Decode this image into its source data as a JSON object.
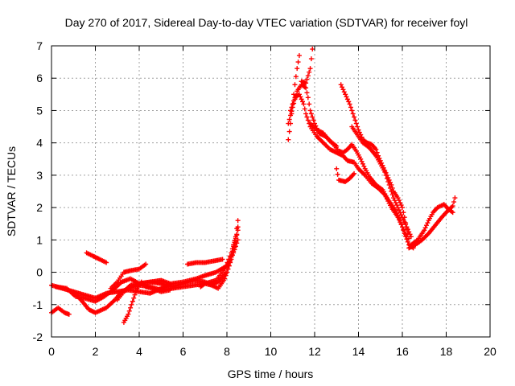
{
  "chart_data": {
    "type": "scatter",
    "title": "Day 270 of 2017, Sidereal Day-to-day VTEC variation (SDTVAR) for receiver foyl",
    "xlabel": "GPS time / hours",
    "ylabel": "SDTVAR / TECUs",
    "xlim": [
      0,
      20
    ],
    "ylim": [
      -2,
      7
    ],
    "xticks": [
      "0",
      "2",
      "4",
      "6",
      "8",
      "10",
      "12",
      "14",
      "16",
      "18",
      "20"
    ],
    "yticks": [
      "-2",
      "-1",
      "0",
      "1",
      "2",
      "3",
      "4",
      "5",
      "6",
      "7"
    ],
    "grid": true,
    "marker": "+",
    "series_color": "#ff0000",
    "tracks": [
      [
        [
          0.0,
          -1.25
        ],
        [
          0.3,
          -1.1
        ],
        [
          0.6,
          -1.25
        ],
        [
          0.8,
          -1.3
        ]
      ],
      [
        [
          0.0,
          -0.4
        ],
        [
          0.5,
          -0.5
        ],
        [
          1.0,
          -0.6
        ],
        [
          1.4,
          -0.9
        ],
        [
          1.7,
          -1.15
        ],
        [
          2.0,
          -1.25
        ],
        [
          2.5,
          -1.1
        ],
        [
          2.9,
          -0.85
        ],
        [
          3.2,
          -0.6
        ],
        [
          3.5,
          -0.5
        ],
        [
          4.0,
          -0.4
        ],
        [
          4.5,
          -0.45
        ],
        [
          5.0,
          -0.55
        ],
        [
          5.5,
          -0.5
        ],
        [
          6.0,
          -0.45
        ],
        [
          6.5,
          -0.4
        ],
        [
          7.0,
          -0.35
        ],
        [
          7.5,
          -0.25
        ],
        [
          7.9,
          0.1
        ],
        [
          8.2,
          0.6
        ],
        [
          8.4,
          1.1
        ],
        [
          8.5,
          1.6
        ]
      ],
      [
        [
          0.2,
          -0.45
        ],
        [
          0.7,
          -0.5
        ],
        [
          1.1,
          -0.75
        ],
        [
          1.5,
          -0.8
        ],
        [
          2.0,
          -0.9
        ],
        [
          2.4,
          -0.75
        ],
        [
          2.8,
          -0.55
        ],
        [
          3.2,
          -0.3
        ],
        [
          3.6,
          -0.2
        ],
        [
          4.0,
          -0.35
        ],
        [
          4.5,
          -0.3
        ],
        [
          5.0,
          -0.35
        ],
        [
          5.5,
          -0.45
        ],
        [
          6.0,
          -0.35
        ],
        [
          6.5,
          -0.25
        ],
        [
          7.0,
          -0.3
        ],
        [
          7.3,
          -0.4
        ],
        [
          7.6,
          -0.5
        ],
        [
          7.9,
          -0.2
        ],
        [
          8.1,
          0.2
        ],
        [
          8.3,
          0.8
        ],
        [
          8.5,
          1.3
        ]
      ],
      [
        [
          1.0,
          -0.6
        ],
        [
          1.5,
          -0.7
        ],
        [
          2.0,
          -0.8
        ],
        [
          2.5,
          -0.65
        ],
        [
          3.0,
          -0.6
        ],
        [
          3.5,
          -0.55
        ],
        [
          4.0,
          -0.6
        ],
        [
          4.5,
          -0.65
        ],
        [
          5.0,
          -0.5
        ],
        [
          5.5,
          -0.35
        ],
        [
          6.0,
          -0.3
        ],
        [
          6.6,
          -0.2
        ],
        [
          7.0,
          -0.1
        ],
        [
          7.5,
          0.0
        ],
        [
          8.0,
          0.2
        ],
        [
          8.3,
          0.6
        ],
        [
          8.5,
          1.0
        ]
      ],
      [
        [
          3.3,
          -1.55
        ],
        [
          3.5,
          -1.3
        ],
        [
          3.7,
          -0.9
        ],
        [
          3.9,
          -0.5
        ],
        [
          4.1,
          -0.3
        ],
        [
          4.3,
          -0.45
        ],
        [
          4.6,
          -0.5
        ],
        [
          5.0,
          -0.6
        ],
        [
          5.4,
          -0.55
        ]
      ],
      [
        [
          3.0,
          -0.85
        ],
        [
          3.3,
          -0.6
        ],
        [
          3.6,
          -0.4
        ],
        [
          4.0,
          -0.35
        ],
        [
          4.5,
          -0.3
        ],
        [
          5.0,
          -0.25
        ],
        [
          5.4,
          -0.35
        ]
      ],
      [
        [
          1.6,
          0.6
        ],
        [
          1.9,
          0.5
        ],
        [
          2.2,
          0.4
        ],
        [
          2.5,
          0.3
        ]
      ],
      [
        [
          2.7,
          -0.5
        ],
        [
          3.0,
          -0.3
        ],
        [
          3.3,
          0.0
        ],
        [
          3.6,
          0.05
        ],
        [
          4.0,
          0.1
        ],
        [
          4.3,
          0.25
        ]
      ],
      [
        [
          6.2,
          0.25
        ],
        [
          6.6,
          0.3
        ],
        [
          7.0,
          0.3
        ],
        [
          7.4,
          0.35
        ],
        [
          7.8,
          0.4
        ]
      ],
      [
        [
          6.8,
          -0.45
        ],
        [
          7.0,
          -0.35
        ],
        [
          7.3,
          -0.4
        ],
        [
          7.6,
          -0.3
        ],
        [
          7.8,
          -0.15
        ],
        [
          8.0,
          0.0
        ],
        [
          8.2,
          0.4
        ],
        [
          8.4,
          0.9
        ],
        [
          8.5,
          1.4
        ]
      ],
      [
        [
          10.8,
          4.1
        ],
        [
          10.9,
          4.6
        ],
        [
          11.0,
          5.2
        ],
        [
          11.1,
          5.8
        ],
        [
          11.2,
          6.3
        ],
        [
          11.3,
          6.7
        ]
      ],
      [
        [
          10.8,
          4.6
        ],
        [
          11.0,
          5.1
        ],
        [
          11.2,
          5.6
        ],
        [
          11.4,
          5.8
        ],
        [
          11.6,
          5.7
        ],
        [
          11.7,
          5.4
        ],
        [
          11.8,
          5.0
        ],
        [
          12.0,
          4.6
        ],
        [
          12.2,
          4.3
        ],
        [
          12.5,
          4.2
        ],
        [
          12.8,
          4.0
        ],
        [
          13.1,
          3.75
        ],
        [
          13.3,
          3.7
        ],
        [
          13.5,
          3.8
        ],
        [
          13.7,
          3.95
        ],
        [
          13.9,
          3.75
        ],
        [
          14.1,
          3.5
        ],
        [
          14.3,
          3.2
        ],
        [
          14.5,
          2.95
        ],
        [
          14.8,
          2.7
        ],
        [
          15.1,
          2.55
        ],
        [
          15.3,
          2.3
        ],
        [
          15.5,
          2.1
        ],
        [
          15.7,
          1.9
        ],
        [
          15.9,
          1.6
        ],
        [
          16.1,
          1.2
        ],
        [
          16.3,
          0.85
        ],
        [
          16.5,
          0.75
        ]
      ],
      [
        [
          10.9,
          5.0
        ],
        [
          11.1,
          5.4
        ],
        [
          11.3,
          5.5
        ],
        [
          11.5,
          5.2
        ],
        [
          11.6,
          4.9
        ],
        [
          11.8,
          4.5
        ],
        [
          12.1,
          4.2
        ],
        [
          12.4,
          4.0
        ],
        [
          12.7,
          3.8
        ],
        [
          13.0,
          3.7
        ],
        [
          13.3,
          3.6
        ],
        [
          13.5,
          3.45
        ],
        [
          13.8,
          3.4
        ],
        [
          14.0,
          3.2
        ],
        [
          14.3,
          3.0
        ],
        [
          14.6,
          2.75
        ],
        [
          14.9,
          2.6
        ],
        [
          15.2,
          2.4
        ],
        [
          15.5,
          2.0
        ],
        [
          15.8,
          1.7
        ],
        [
          16.0,
          1.4
        ],
        [
          16.2,
          1.1
        ]
      ],
      [
        [
          11.4,
          5.9
        ],
        [
          11.6,
          5.85
        ],
        [
          11.8,
          6.3
        ],
        [
          11.9,
          6.9
        ]
      ],
      [
        [
          11.8,
          4.6
        ],
        [
          12.1,
          4.4
        ],
        [
          12.4,
          4.3
        ],
        [
          12.7,
          4.05
        ],
        [
          13.0,
          3.9
        ]
      ],
      [
        [
          13.2,
          5.8
        ],
        [
          13.4,
          5.5
        ],
        [
          13.6,
          5.2
        ],
        [
          13.8,
          4.8
        ],
        [
          14.0,
          4.4
        ],
        [
          14.2,
          4.1
        ],
        [
          14.4,
          4.0
        ],
        [
          14.6,
          3.95
        ],
        [
          14.8,
          3.8
        ],
        [
          14.9,
          3.6
        ],
        [
          15.1,
          3.3
        ],
        [
          15.3,
          3.0
        ],
        [
          15.5,
          2.7
        ],
        [
          15.6,
          2.5
        ],
        [
          15.8,
          2.3
        ],
        [
          16.0,
          2.0
        ],
        [
          16.1,
          1.7
        ],
        [
          16.2,
          1.35
        ],
        [
          16.3,
          1.05
        ]
      ],
      [
        [
          13.7,
          4.5
        ],
        [
          14.0,
          4.2
        ],
        [
          14.2,
          4.0
        ],
        [
          14.5,
          3.85
        ],
        [
          14.8,
          3.6
        ],
        [
          15.0,
          3.35
        ],
        [
          15.2,
          3.1
        ],
        [
          15.4,
          2.7
        ],
        [
          15.6,
          2.3
        ],
        [
          15.8,
          2.0
        ],
        [
          16.0,
          1.7
        ],
        [
          16.2,
          1.4
        ],
        [
          16.4,
          1.1
        ]
      ],
      [
        [
          13.0,
          3.2
        ],
        [
          13.1,
          2.85
        ],
        [
          13.4,
          2.8
        ],
        [
          13.6,
          2.9
        ],
        [
          13.8,
          3.05
        ]
      ],
      [
        [
          16.3,
          0.75
        ],
        [
          16.6,
          0.85
        ],
        [
          16.9,
          1.0
        ],
        [
          17.2,
          1.2
        ],
        [
          17.5,
          1.45
        ],
        [
          17.8,
          1.7
        ],
        [
          18.0,
          1.85
        ],
        [
          18.3,
          2.05
        ],
        [
          18.4,
          2.3
        ]
      ],
      [
        [
          16.4,
          0.85
        ],
        [
          16.7,
          1.0
        ],
        [
          17.0,
          1.3
        ],
        [
          17.2,
          1.6
        ],
        [
          17.4,
          1.85
        ],
        [
          17.6,
          2.0
        ],
        [
          17.9,
          2.1
        ],
        [
          18.1,
          1.95
        ],
        [
          18.3,
          1.85
        ]
      ]
    ]
  }
}
